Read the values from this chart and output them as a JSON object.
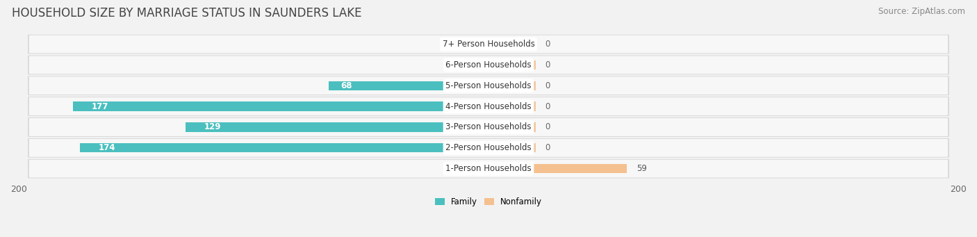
{
  "title": "HOUSEHOLD SIZE BY MARRIAGE STATUS IN SAUNDERS LAKE",
  "source": "Source: ZipAtlas.com",
  "categories": [
    "7+ Person Households",
    "6-Person Households",
    "5-Person Households",
    "4-Person Households",
    "3-Person Households",
    "2-Person Households",
    "1-Person Households"
  ],
  "family_values": [
    0,
    0,
    68,
    177,
    129,
    174,
    0
  ],
  "nonfamily_values": [
    0,
    0,
    0,
    0,
    0,
    0,
    59
  ],
  "family_color": "#4bbfbf",
  "nonfamily_color": "#f5c090",
  "nonfamily_stub_color": "#f0c8a0",
  "xlim": 200,
  "background_color": "#f2f2f2",
  "row_bg_color": "#e8e8e8",
  "row_inner_color": "#f7f7f7",
  "title_fontsize": 12,
  "source_fontsize": 8.5,
  "label_fontsize": 8.5,
  "tick_fontsize": 9,
  "label_bg_color": "#ffffff"
}
